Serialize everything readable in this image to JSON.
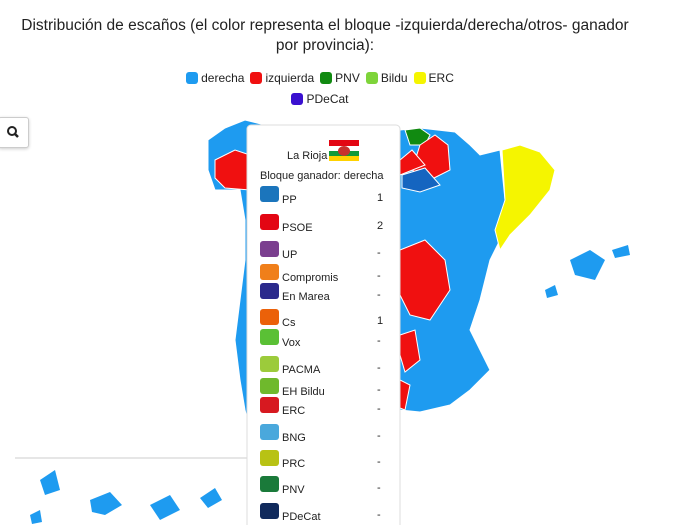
{
  "header": {
    "title": "Distribución de escaños (el color representa el bloque -izquierda/derecha/otros- ganador por provincia):"
  },
  "legend": {
    "items": [
      {
        "name": "derecha",
        "color": "#1e9bf0"
      },
      {
        "name": "izquierda",
        "color": "#f01010"
      },
      {
        "name": "PNV",
        "color": "#118a11"
      },
      {
        "name": "Bildu",
        "color": "#7ed43a"
      },
      {
        "name": "ERC",
        "color": "#f5f500"
      },
      {
        "name": "PDeCat",
        "color": "#3a10d0"
      }
    ]
  },
  "tooltip": {
    "region": "La Rioja",
    "winner": "Bloque ganador: derecha",
    "parties": [
      {
        "name": "PP",
        "seats": 1
      },
      {
        "name": "PSOE",
        "seats": 2
      },
      {
        "name": "UP",
        "seats": "-"
      },
      {
        "name": "Compromis",
        "seats": "-"
      },
      {
        "name": "En Marea",
        "seats": "-"
      },
      {
        "name": "Cs",
        "seats": 1
      },
      {
        "name": "Vox",
        "seats": "-"
      },
      {
        "name": "PACMA",
        "seats": "-"
      },
      {
        "name": "EH Bildu",
        "seats": "-"
      },
      {
        "name": "ERC",
        "seats": "-"
      },
      {
        "name": "BNG",
        "seats": "-"
      },
      {
        "name": "PRC",
        "seats": "-"
      },
      {
        "name": "PNV",
        "seats": "-"
      },
      {
        "name": "PDeCat",
        "seats": "-"
      }
    ]
  }
}
